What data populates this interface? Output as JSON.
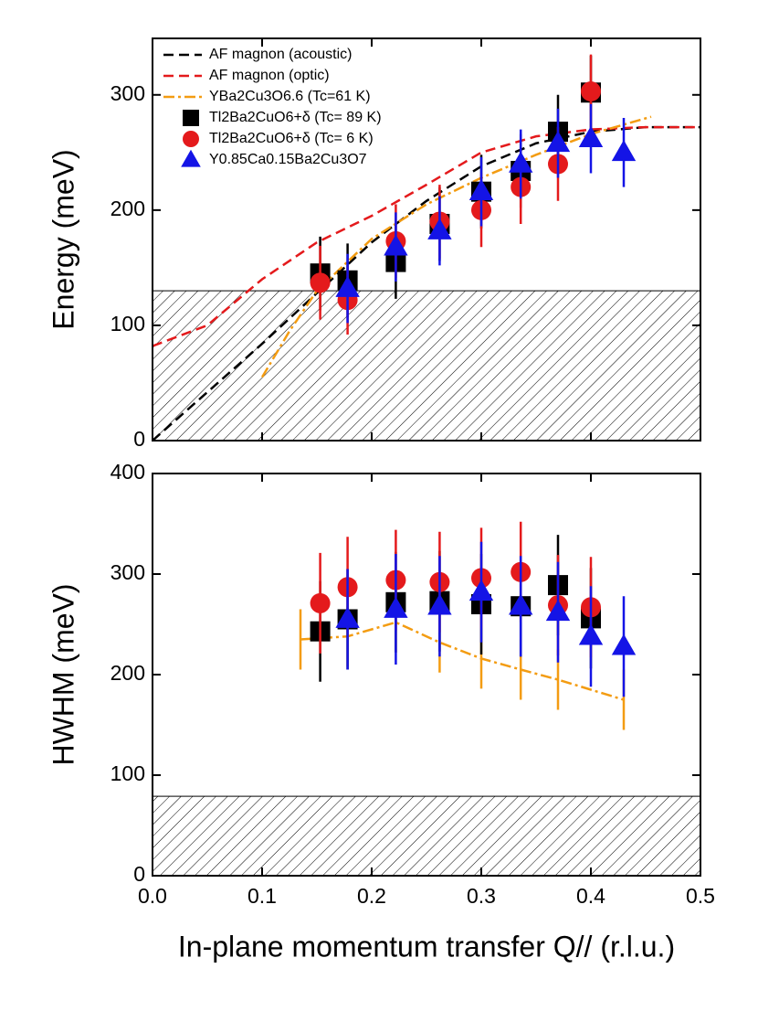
{
  "chart_data": [
    {
      "type": "scatter",
      "ylabel": "Energy (meV)",
      "xlim": [
        0,
        0.5
      ],
      "ylim": [
        0,
        349
      ],
      "xticks": [
        0,
        0.1,
        0.2,
        0.3,
        0.4,
        0.5
      ],
      "xtick_labels": false,
      "yticks": [
        0,
        100,
        200,
        300
      ],
      "hatch_band": [
        0,
        130
      ],
      "legend": "upper left",
      "series": [
        {
          "name": "AF magnon (acoustic)",
          "color": "#000000",
          "dash": "dashed",
          "x": [
            0,
            0.05,
            0.1,
            0.15,
            0.2,
            0.25,
            0.3,
            0.35,
            0.4,
            0.45,
            0.5
          ],
          "values": [
            0,
            42,
            84,
            128,
            172,
            208,
            238,
            258,
            268,
            272,
            272
          ]
        },
        {
          "name": "AF magnon (optic)",
          "color": "#e41a1c",
          "dash": "dashed",
          "x": [
            0,
            0.05,
            0.1,
            0.15,
            0.2,
            0.25,
            0.3,
            0.35,
            0.4,
            0.45,
            0.5
          ],
          "values": [
            82,
            100,
            140,
            172,
            195,
            222,
            250,
            264,
            270,
            272,
            272
          ]
        },
        {
          "name": "YBa2Cu3O6.6 (Tc=61 K)",
          "color": "#f39c12",
          "dash": "dashdot",
          "x": [
            0.1,
            0.125,
            0.15,
            0.2,
            0.25,
            0.3,
            0.35,
            0.4,
            0.455
          ],
          "values": [
            55,
            95,
            130,
            175,
            205,
            228,
            248,
            266,
            281
          ]
        },
        {
          "name": "Tl2Ba2CuO6+δ (Tc= 89 K)",
          "color": "#000000",
          "marker": "square",
          "x": [
            0.153,
            0.178,
            0.222,
            0.262,
            0.3,
            0.336,
            0.37,
            0.4
          ],
          "values": [
            145,
            139,
            155,
            188,
            216,
            234,
            268,
            302
          ],
          "errors": [
            32,
            32,
            32,
            32,
            32,
            32,
            32,
            32
          ]
        },
        {
          "name": "Tl2Ba2CuO6+δ (Tc= 6 K)",
          "color": "#e41a1c",
          "marker": "circle",
          "x": [
            0.153,
            0.178,
            0.222,
            0.262,
            0.3,
            0.336,
            0.37,
            0.4
          ],
          "values": [
            137,
            122,
            173,
            190,
            200,
            220,
            240,
            303
          ],
          "errors": [
            32,
            30,
            32,
            32,
            32,
            32,
            32,
            32
          ]
        },
        {
          "name": "Y0.85Ca0.15Ba2Cu3O7",
          "color": "#1414e6",
          "marker": "triangle",
          "x": [
            0.178,
            0.222,
            0.262,
            0.3,
            0.336,
            0.37,
            0.4,
            0.43
          ],
          "values": [
            132,
            168,
            182,
            216,
            240,
            258,
            262,
            250
          ],
          "errors": [
            30,
            30,
            30,
            30,
            30,
            30,
            30,
            30
          ]
        }
      ]
    },
    {
      "type": "scatter",
      "ylabel": "HWHM (meV)",
      "xlabel": "In-plane momentum transfer Q// (r.l.u.)",
      "xlim": [
        0,
        0.5
      ],
      "ylim": [
        0,
        400
      ],
      "xticks": [
        {
          "value": 0,
          "label": "0.0"
        },
        0.1,
        0.2,
        0.3,
        0.4,
        0.5
      ],
      "xtick_labels": true,
      "yticks": [
        0,
        100,
        200,
        300,
        400
      ],
      "hatch_band": [
        0,
        79
      ],
      "series": [
        {
          "color": "#f39c12",
          "dash": "dashdot",
          "x": [
            0.135,
            0.178,
            0.222,
            0.262,
            0.3,
            0.336,
            0.37,
            0.43
          ],
          "values": [
            235,
            238,
            252,
            232,
            216,
            205,
            195,
            175
          ],
          "errors": [
            30,
            30,
            30,
            30,
            30,
            30,
            30,
            30
          ]
        },
        {
          "color": "#000000",
          "marker": "square",
          "x": [
            0.153,
            0.178,
            0.222,
            0.262,
            0.3,
            0.336,
            0.37,
            0.4
          ],
          "values": [
            243,
            255,
            272,
            273,
            270,
            268,
            289,
            256
          ],
          "errors": [
            50,
            50,
            50,
            50,
            50,
            50,
            50,
            50
          ]
        },
        {
          "color": "#e41a1c",
          "marker": "circle",
          "x": [
            0.153,
            0.178,
            0.222,
            0.262,
            0.3,
            0.336,
            0.37,
            0.4
          ],
          "values": [
            271,
            287,
            294,
            292,
            296,
            302,
            269,
            267
          ],
          "errors": [
            50,
            50,
            50,
            50,
            50,
            50,
            50,
            50
          ]
        },
        {
          "color": "#1414e6",
          "marker": "triangle",
          "x": [
            0.178,
            0.222,
            0.262,
            0.3,
            0.336,
            0.37,
            0.4,
            0.43
          ],
          "values": [
            255,
            265,
            268,
            282,
            268,
            262,
            238,
            228
          ],
          "errors": [
            50,
            55,
            50,
            50,
            50,
            50,
            50,
            50
          ]
        }
      ]
    }
  ]
}
